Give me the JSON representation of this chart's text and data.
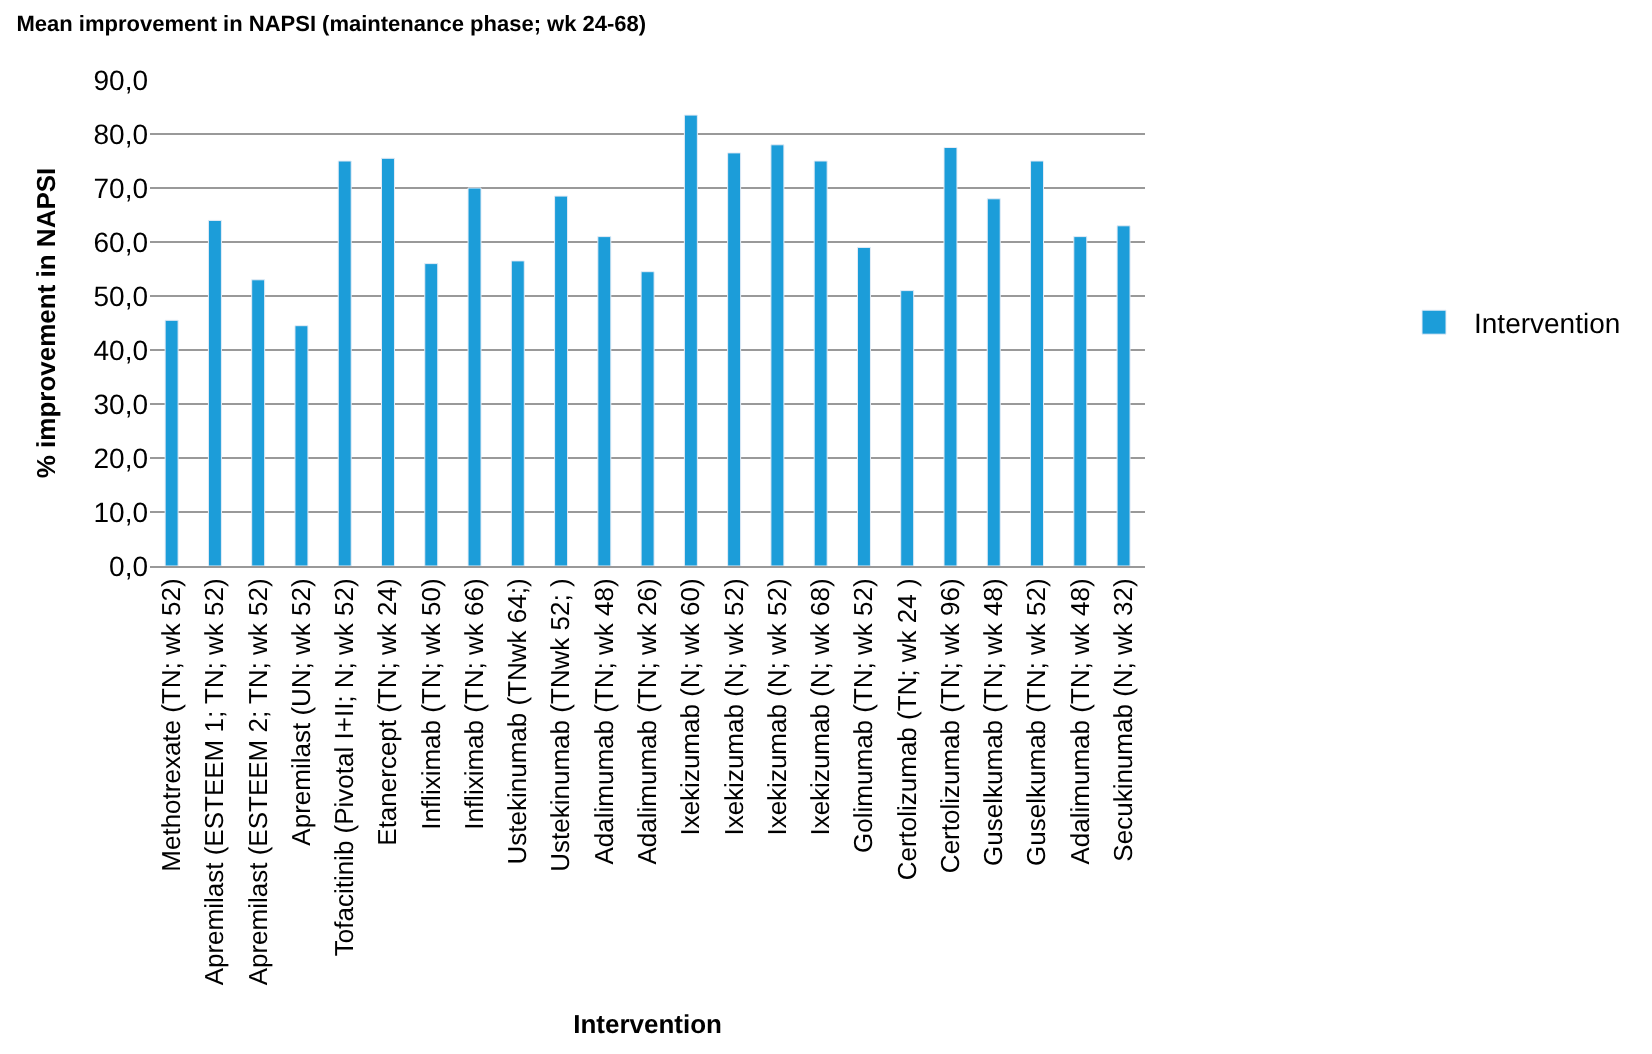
{
  "chart_data": {
    "type": "bar",
    "title": "Mean improvement in NAPSI (maintenance phase; wk 24-68)",
    "xlabel": "Intervention",
    "ylabel": "% improvement in NAPSI",
    "categories": [
      "Methotrexate (TN; wk 52)",
      "Apremilast (ESTEEM 1; TN; wk 52)",
      "Apremilast (ESTEEM 2; TN; wk 52)",
      "Apremilast (UN; wk 52)",
      "Tofacitinib (Pivotal I+II; N; wk 52)",
      "Etanercept (TN; wk 24)",
      "Infliximab (TN; wk 50)",
      "Infliximab (TN; wk 66)",
      "Ustekinumab (TNwk 64;)",
      "Ustekinumab (TNwk 52; )",
      "Adalimumab (TN; wk 48)",
      "Adalimumab (TN; wk 26)",
      "Ixekizumab (N; wk 60)",
      "Ixekizumab (N; wk 52)",
      "Ixekizumab (N; wk 52)",
      "Ixekizumab (N; wk 68)",
      "Golimumab (TN; wk 52)",
      "Certolizumab (TN; wk 24 )",
      "Certolizumab (TN; wk 96)",
      "Guselkumab (TN; wk 48)",
      "Guselkumab (TN; wk 52)",
      "Adalimumab (TN; wk 48)",
      "Secukinumab (N; wk 32)"
    ],
    "series": [
      {
        "name": "Intervention",
        "color": "#1c9dd9",
        "values": [
          45.5,
          64,
          53,
          44.5,
          75,
          75.5,
          56,
          70,
          56.5,
          68.5,
          61,
          54.5,
          83.5,
          76.5,
          78,
          75,
          59,
          51,
          77.5,
          68,
          75,
          61,
          63
        ]
      }
    ],
    "ylim": [
      0,
      90
    ],
    "yticks": [
      {
        "value": 0,
        "label": "0,0"
      },
      {
        "value": 10,
        "label": "10,0"
      },
      {
        "value": 20,
        "label": "20,0"
      },
      {
        "value": 30,
        "label": "30,0"
      },
      {
        "value": 40,
        "label": "40,0"
      },
      {
        "value": 50,
        "label": "50,0"
      },
      {
        "value": 60,
        "label": "60,0"
      },
      {
        "value": 70,
        "label": "70,0"
      },
      {
        "value": 80,
        "label": "80,0"
      },
      {
        "value": 90,
        "label": "90,0"
      }
    ],
    "grid": "y",
    "legend": "right"
  }
}
